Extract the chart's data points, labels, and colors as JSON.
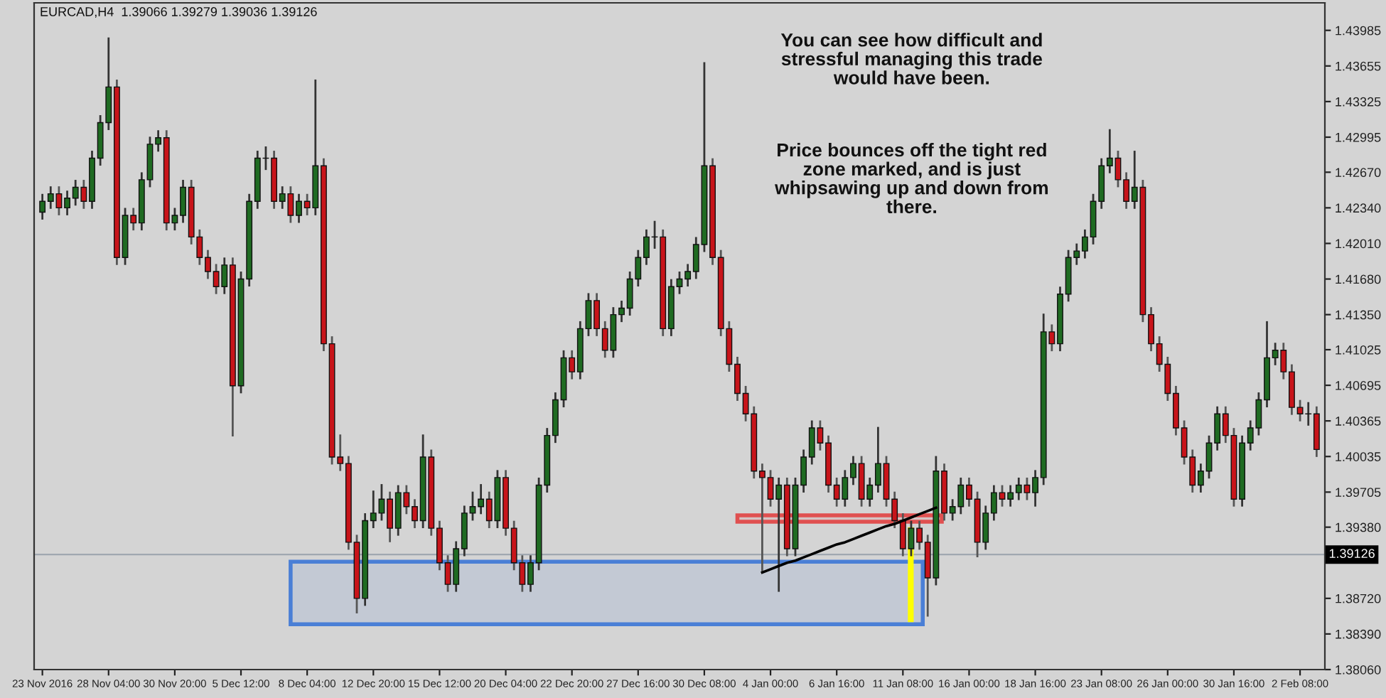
{
  "chart_data": {
    "type": "candlestick",
    "title": "EURCAD,H4  1.39066 1.39279 1.39036 1.39126",
    "annotations": [
      "You can see how difficult and\nstressful managing this trade\nwould have been.",
      "Price bounces off the tight red\nzone marked, and is just\nwhipsawing up and down from\nthere."
    ],
    "categories": [
      "23 Nov 2016",
      null,
      null,
      null,
      null,
      null,
      null,
      null,
      "28 Nov 04:00",
      null,
      null,
      null,
      null,
      null,
      null,
      null,
      "30 Nov 20:00",
      null,
      null,
      null,
      null,
      null,
      null,
      null,
      "5 Dec 12:00",
      null,
      null,
      null,
      null,
      null,
      null,
      null,
      "8 Dec 04:00",
      null,
      null,
      null,
      null,
      null,
      null,
      null,
      "12 Dec 20:00",
      null,
      null,
      null,
      null,
      null,
      null,
      null,
      "15 Dec 12:00",
      null,
      null,
      null,
      null,
      null,
      null,
      null,
      "20 Dec 04:00",
      null,
      null,
      null,
      null,
      null,
      null,
      null,
      "22 Dec 20:00",
      null,
      null,
      null,
      null,
      null,
      null,
      null,
      "27 Dec 16:00",
      null,
      null,
      null,
      null,
      null,
      null,
      null,
      "30 Dec 08:00",
      null,
      null,
      null,
      null,
      null,
      null,
      null,
      "4 Jan 00:00",
      null,
      null,
      null,
      null,
      null,
      null,
      null,
      "6 Jan 16:00",
      null,
      null,
      null,
      null,
      null,
      null,
      null,
      "11 Jan 08:00",
      null,
      null,
      null,
      null,
      null,
      null,
      null,
      "16 Jan 00:00",
      null,
      null,
      null,
      null,
      null,
      null,
      null,
      "18 Jan 16:00",
      null,
      null,
      null,
      null,
      null,
      null,
      null,
      "23 Jan 08:00",
      null,
      null,
      null,
      null,
      null,
      null,
      null,
      "26 Jan 00:00",
      null,
      null,
      null,
      null,
      null,
      null,
      null,
      "30 Jan 16:00",
      null,
      null,
      null,
      null,
      null,
      null,
      null,
      "2 Feb 08:00",
      null,
      null
    ],
    "ohlc": [
      [
        1.423,
        1.4246,
        1.4224,
        1.424
      ],
      [
        1.424,
        1.4253,
        1.4234,
        1.4247
      ],
      [
        1.4247,
        1.4253,
        1.4228,
        1.4234
      ],
      [
        1.4234,
        1.4249,
        1.4228,
        1.4243
      ],
      [
        1.4243,
        1.4259,
        1.4237,
        1.4253
      ],
      [
        1.4253,
        1.4259,
        1.4234,
        1.424
      ],
      [
        1.424,
        1.4286,
        1.4234,
        1.428
      ],
      [
        1.428,
        1.4319,
        1.4274,
        1.4313
      ],
      [
        1.4313,
        1.4391,
        1.4307,
        1.4346
      ],
      [
        1.4346,
        1.4352,
        1.4182,
        1.4188
      ],
      [
        1.4188,
        1.4233,
        1.4182,
        1.4227
      ],
      [
        1.4227,
        1.4233,
        1.4214,
        1.422
      ],
      [
        1.422,
        1.4266,
        1.4214,
        1.426
      ],
      [
        1.426,
        1.4299,
        1.4254,
        1.4293
      ],
      [
        1.4293,
        1.4305,
        1.4287,
        1.4299
      ],
      [
        1.4299,
        1.4305,
        1.4214,
        1.422
      ],
      [
        1.422,
        1.4233,
        1.4214,
        1.4227
      ],
      [
        1.4227,
        1.4259,
        1.4221,
        1.4253
      ],
      [
        1.4253,
        1.4259,
        1.4201,
        1.4207
      ],
      [
        1.4207,
        1.4213,
        1.4182,
        1.4188
      ],
      [
        1.4188,
        1.4194,
        1.4169,
        1.4175
      ],
      [
        1.4175,
        1.4181,
        1.4155,
        1.4161
      ],
      [
        1.4161,
        1.4187,
        1.4155,
        1.4181
      ],
      [
        1.4181,
        1.4187,
        1.4023,
        1.4069
      ],
      [
        1.4069,
        1.4174,
        1.4063,
        1.4168
      ],
      [
        1.4168,
        1.4246,
        1.4162,
        1.424
      ],
      [
        1.424,
        1.4286,
        1.4234,
        1.428
      ],
      [
        1.428,
        1.429,
        1.427,
        1.428
      ],
      [
        1.428,
        1.4286,
        1.4234,
        1.424
      ],
      [
        1.424,
        1.4253,
        1.4234,
        1.4247
      ],
      [
        1.4247,
        1.4253,
        1.4221,
        1.4227
      ],
      [
        1.4227,
        1.4246,
        1.4221,
        1.424
      ],
      [
        1.424,
        1.4246,
        1.4228,
        1.4234
      ],
      [
        1.4234,
        1.4352,
        1.4228,
        1.4273
      ],
      [
        1.4273,
        1.4279,
        1.4102,
        1.4108
      ],
      [
        1.4108,
        1.4114,
        1.3997,
        1.4003
      ],
      [
        1.4003,
        1.4023,
        1.3991,
        1.3997
      ],
      [
        1.3997,
        1.4003,
        1.3918,
        1.3924
      ],
      [
        1.3924,
        1.393,
        1.3859,
        1.3872
      ],
      [
        1.3872,
        1.395,
        1.3866,
        1.3944
      ],
      [
        1.3944,
        1.3971,
        1.3938,
        1.3951
      ],
      [
        1.3951,
        1.3977,
        1.3945,
        1.3964
      ],
      [
        1.3964,
        1.397,
        1.3925,
        1.3937
      ],
      [
        1.3937,
        1.3976,
        1.3931,
        1.397
      ],
      [
        1.397,
        1.3976,
        1.3951,
        1.3957
      ],
      [
        1.3957,
        1.3963,
        1.3938,
        1.3944
      ],
      [
        1.3944,
        1.4023,
        1.3938,
        1.4003
      ],
      [
        1.4003,
        1.4009,
        1.3931,
        1.3937
      ],
      [
        1.3937,
        1.3943,
        1.3899,
        1.3905
      ],
      [
        1.3905,
        1.3911,
        1.3879,
        1.3885
      ],
      [
        1.3885,
        1.3924,
        1.3879,
        1.3918
      ],
      [
        1.3918,
        1.3957,
        1.3912,
        1.3951
      ],
      [
        1.3951,
        1.397,
        1.3945,
        1.3957
      ],
      [
        1.3957,
        1.3977,
        1.3951,
        1.3964
      ],
      [
        1.3964,
        1.397,
        1.3938,
        1.3944
      ],
      [
        1.3944,
        1.399,
        1.3938,
        1.3984
      ],
      [
        1.3984,
        1.399,
        1.3931,
        1.3937
      ],
      [
        1.3937,
        1.3943,
        1.3899,
        1.3905
      ],
      [
        1.3905,
        1.3911,
        1.3879,
        1.3885
      ],
      [
        1.3885,
        1.3911,
        1.3879,
        1.3905
      ],
      [
        1.3905,
        1.3983,
        1.3899,
        1.3977
      ],
      [
        1.3977,
        1.4029,
        1.3971,
        1.4023
      ],
      [
        1.4023,
        1.4062,
        1.4017,
        1.4056
      ],
      [
        1.4056,
        1.4101,
        1.405,
        1.4095
      ],
      [
        1.4095,
        1.4101,
        1.4076,
        1.4082
      ],
      [
        1.4082,
        1.4128,
        1.4076,
        1.4122
      ],
      [
        1.4122,
        1.4154,
        1.4116,
        1.4148
      ],
      [
        1.4148,
        1.4154,
        1.4116,
        1.4122
      ],
      [
        1.4122,
        1.4128,
        1.4096,
        1.4102
      ],
      [
        1.4102,
        1.4141,
        1.4096,
        1.4135
      ],
      [
        1.4135,
        1.4147,
        1.4129,
        1.4141
      ],
      [
        1.4141,
        1.4174,
        1.4135,
        1.4168
      ],
      [
        1.4168,
        1.4194,
        1.4162,
        1.4188
      ],
      [
        1.4188,
        1.4213,
        1.4182,
        1.4207
      ],
      [
        1.4207,
        1.4221,
        1.4197,
        1.4207
      ],
      [
        1.4207,
        1.4213,
        1.4116,
        1.4122
      ],
      [
        1.4122,
        1.4167,
        1.4116,
        1.4161
      ],
      [
        1.4161,
        1.4174,
        1.4155,
        1.4168
      ],
      [
        1.4168,
        1.4181,
        1.4162,
        1.4175
      ],
      [
        1.4175,
        1.4206,
        1.4169,
        1.42
      ],
      [
        1.42,
        1.4368,
        1.4194,
        1.4273
      ],
      [
        1.4273,
        1.4279,
        1.4182,
        1.4188
      ],
      [
        1.4188,
        1.4194,
        1.4116,
        1.4122
      ],
      [
        1.4122,
        1.4128,
        1.4083,
        1.4089
      ],
      [
        1.4089,
        1.4095,
        1.4056,
        1.4062
      ],
      [
        1.4062,
        1.4068,
        1.4037,
        1.4043
      ],
      [
        1.4043,
        1.4049,
        1.3984,
        1.399
      ],
      [
        1.399,
        1.3996,
        1.3898,
        1.3984
      ],
      [
        1.3984,
        1.399,
        1.3958,
        1.3964
      ],
      [
        1.3964,
        1.3983,
        1.3879,
        1.3977
      ],
      [
        1.3977,
        1.3983,
        1.3912,
        1.3918
      ],
      [
        1.3918,
        1.3983,
        1.3912,
        1.3977
      ],
      [
        1.3977,
        1.4009,
        1.3971,
        1.4003
      ],
      [
        1.4003,
        1.4036,
        1.3997,
        1.403
      ],
      [
        1.403,
        1.4036,
        1.401,
        1.4016
      ],
      [
        1.4016,
        1.4022,
        1.3971,
        1.3977
      ],
      [
        1.3977,
        1.3983,
        1.3958,
        1.3964
      ],
      [
        1.3964,
        1.399,
        1.3958,
        1.3984
      ],
      [
        1.3984,
        1.4003,
        1.3978,
        1.3997
      ],
      [
        1.3997,
        1.4003,
        1.3958,
        1.3964
      ],
      [
        1.3964,
        1.3983,
        1.3958,
        1.3977
      ],
      [
        1.3977,
        1.403,
        1.3971,
        1.3997
      ],
      [
        1.3997,
        1.4003,
        1.3958,
        1.3964
      ],
      [
        1.3964,
        1.397,
        1.3938,
        1.3944
      ],
      [
        1.3944,
        1.395,
        1.3912,
        1.3918
      ],
      [
        1.3918,
        1.3943,
        1.3912,
        1.3937
      ],
      [
        1.3937,
        1.3943,
        1.3918,
        1.3924
      ],
      [
        1.3924,
        1.393,
        1.3856,
        1.3891
      ],
      [
        1.3891,
        1.4003,
        1.3885,
        1.399
      ],
      [
        1.399,
        1.3996,
        1.3945,
        1.3951
      ],
      [
        1.3951,
        1.3963,
        1.3945,
        1.3957
      ],
      [
        1.3957,
        1.3983,
        1.3951,
        1.3977
      ],
      [
        1.3977,
        1.3983,
        1.3958,
        1.3964
      ],
      [
        1.3964,
        1.397,
        1.3911,
        1.3924
      ],
      [
        1.3924,
        1.3957,
        1.3918,
        1.3951
      ],
      [
        1.3951,
        1.3976,
        1.3945,
        1.397
      ],
      [
        1.397,
        1.3976,
        1.3958,
        1.3964
      ],
      [
        1.3964,
        1.3976,
        1.3958,
        1.397
      ],
      [
        1.397,
        1.3983,
        1.3964,
        1.3977
      ],
      [
        1.3977,
        1.3983,
        1.3964,
        1.397
      ],
      [
        1.397,
        1.399,
        1.3958,
        1.3984
      ],
      [
        1.3984,
        1.4135,
        1.3978,
        1.4119
      ],
      [
        1.4119,
        1.4125,
        1.4102,
        1.4108
      ],
      [
        1.4108,
        1.416,
        1.4102,
        1.4154
      ],
      [
        1.4154,
        1.4194,
        1.4148,
        1.4188
      ],
      [
        1.4188,
        1.42,
        1.4182,
        1.4194
      ],
      [
        1.4194,
        1.4213,
        1.4188,
        1.4207
      ],
      [
        1.4207,
        1.4246,
        1.4201,
        1.424
      ],
      [
        1.424,
        1.4279,
        1.4234,
        1.4273
      ],
      [
        1.4273,
        1.4306,
        1.4267,
        1.428
      ],
      [
        1.428,
        1.4286,
        1.4254,
        1.426
      ],
      [
        1.426,
        1.4266,
        1.4234,
        1.424
      ],
      [
        1.424,
        1.4286,
        1.4234,
        1.4253
      ],
      [
        1.4253,
        1.4259,
        1.4129,
        1.4135
      ],
      [
        1.4135,
        1.4141,
        1.4102,
        1.4108
      ],
      [
        1.4108,
        1.4114,
        1.4083,
        1.4089
      ],
      [
        1.4089,
        1.4095,
        1.4056,
        1.4062
      ],
      [
        1.4062,
        1.4068,
        1.4024,
        1.403
      ],
      [
        1.403,
        1.4036,
        1.3997,
        1.4003
      ],
      [
        1.4003,
        1.4009,
        1.3971,
        1.3977
      ],
      [
        1.3977,
        1.3996,
        1.3971,
        1.399
      ],
      [
        1.399,
        1.4022,
        1.3984,
        1.4016
      ],
      [
        1.4016,
        1.4049,
        1.401,
        1.4043
      ],
      [
        1.4043,
        1.4049,
        1.4017,
        1.4023
      ],
      [
        1.4023,
        1.4029,
        1.3958,
        1.3964
      ],
      [
        1.3964,
        1.4022,
        1.3958,
        1.4016
      ],
      [
        1.4016,
        1.4036,
        1.401,
        1.403
      ],
      [
        1.403,
        1.4062,
        1.4024,
        1.4056
      ],
      [
        1.4056,
        1.4128,
        1.405,
        1.4095
      ],
      [
        1.4095,
        1.4108,
        1.4089,
        1.4102
      ],
      [
        1.4102,
        1.4108,
        1.4076,
        1.4082
      ],
      [
        1.4082,
        1.4088,
        1.4043,
        1.4049
      ],
      [
        1.4049,
        1.4055,
        1.4037,
        1.4043
      ],
      [
        1.4043,
        1.4053,
        1.4033,
        1.4043
      ],
      [
        1.4043,
        1.4049,
        1.4004,
        1.401
      ]
    ],
    "ylim": [
      1.3806,
      1.4424
    ],
    "yticks": [
      {
        "value": 1.43985,
        "label": "1.43985"
      },
      {
        "value": 1.43655,
        "label": "1.43655"
      },
      {
        "value": 1.43325,
        "label": "1.43325"
      },
      {
        "value": 1.42995,
        "label": "1.42995"
      },
      {
        "value": 1.4267,
        "label": "1.42670"
      },
      {
        "value": 1.4234,
        "label": "1.42340"
      },
      {
        "value": 1.4201,
        "label": "1.42010"
      },
      {
        "value": 1.4168,
        "label": "1.41680"
      },
      {
        "value": 1.4135,
        "label": "1.41350"
      },
      {
        "value": 1.41025,
        "label": "1.41025"
      },
      {
        "value": 1.40695,
        "label": "1.40695"
      },
      {
        "value": 1.40365,
        "label": "1.40365"
      },
      {
        "value": 1.40035,
        "label": "1.40035"
      },
      {
        "value": 1.39705,
        "label": "1.39705"
      },
      {
        "value": 1.3938,
        "label": "1.39380"
      },
      {
        "value": 1.3905,
        "label": null
      },
      {
        "value": 1.3872,
        "label": "1.38720"
      },
      {
        "value": 1.3839,
        "label": "1.38390"
      },
      {
        "value": 1.3806,
        "label": "1.38060"
      }
    ],
    "ref_lines": [
      {
        "axis": "y",
        "value": 1.39126,
        "label": "1.39126",
        "color": "#a0a8b0"
      }
    ],
    "bands": [
      {
        "axis": "y",
        "from": 1.3848,
        "to": 1.3906,
        "color": "#4a7fd6"
      },
      {
        "axis": "y",
        "from": 1.3943,
        "to": 1.3949,
        "color": "#e05050"
      }
    ],
    "series": [
      {
        "type": "line",
        "color": "#000000",
        "values": [
          null,
          null,
          null,
          null,
          null,
          null,
          null,
          null,
          null,
          null,
          null,
          null,
          null,
          null,
          null,
          null,
          null,
          null,
          null,
          null,
          null,
          null,
          null,
          null,
          null,
          null,
          null,
          null,
          null,
          null,
          null,
          null,
          null,
          null,
          null,
          null,
          null,
          null,
          null,
          null,
          null,
          null,
          null,
          null,
          null,
          null,
          null,
          null,
          null,
          null,
          null,
          null,
          null,
          null,
          null,
          null,
          null,
          null,
          null,
          null,
          null,
          null,
          null,
          null,
          null,
          null,
          null,
          null,
          null,
          null,
          null,
          null,
          null,
          null,
          null,
          null,
          null,
          null,
          null,
          null,
          null,
          null,
          null,
          null,
          null,
          null,
          null,
          1.3896,
          1.3899,
          1.3902,
          1.3905,
          1.3907,
          1.391,
          1.3913,
          1.3916,
          1.3919,
          1.3922,
          1.3924,
          1.3927,
          1.393,
          1.3933,
          1.3936,
          1.3939,
          1.3941,
          1.3944,
          1.3947,
          1.395,
          1.3953,
          1.3956,
          null,
          null,
          null,
          null,
          null,
          null,
          null,
          null,
          null,
          null,
          null,
          null,
          null,
          null,
          null,
          null,
          null,
          null,
          null,
          null,
          null,
          null,
          null,
          null,
          null,
          null,
          null,
          null,
          null,
          null,
          null,
          null,
          null,
          null,
          null,
          null,
          null,
          null,
          null,
          null,
          null,
          null,
          null,
          null,
          null,
          null
        ]
      }
    ],
    "grid": false
  }
}
